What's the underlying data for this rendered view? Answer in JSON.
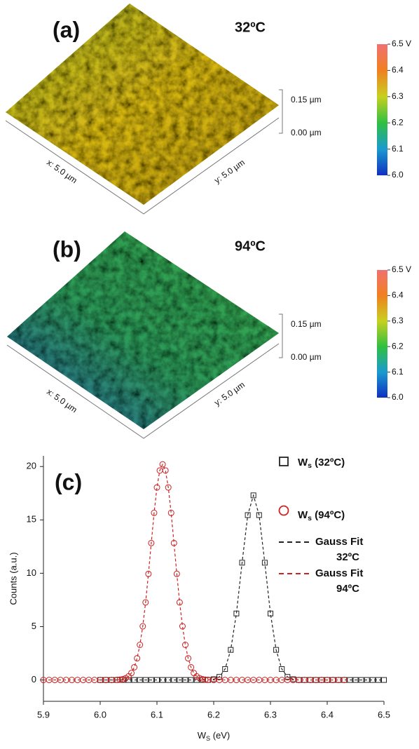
{
  "panels": [
    {
      "label": "(a)",
      "temperature": "32ºC",
      "z_ticks": [
        "0.15 µm",
        "0.00 µm"
      ],
      "x_axis": "x: 5.0 µm",
      "y_axis": "y: 5.0 µm",
      "colorbar": {
        "lim": [
          6.0,
          6.5
        ],
        "ticks": [
          {
            "value": 6.5,
            "label": "6.5 V"
          },
          6.4,
          6.3,
          6.2,
          6.1,
          {
            "value": 6.0,
            "label": "6.0"
          }
        ]
      }
    },
    {
      "label": "(b)",
      "temperature": "94ºC",
      "z_ticks": [
        "0.15 µm",
        "0.00 µm"
      ],
      "x_axis": "x: 5.0 µm",
      "y_axis": "y: 5.0 µm",
      "colorbar": {
        "lim": [
          6.0,
          6.5
        ],
        "ticks": [
          {
            "value": 6.5,
            "label": "6.5 V"
          },
          6.4,
          6.3,
          6.2,
          6.1,
          {
            "value": 6.0,
            "label": "6.0"
          }
        ]
      }
    }
  ],
  "chart_data": {
    "type": "scatter",
    "title": "(c)",
    "x_label": {
      "base": "W",
      "sub": "S",
      "rest": " (eV)"
    },
    "y_label": "Counts (a.u.)",
    "xlim": [
      5.9,
      6.5
    ],
    "ylim": [
      -2,
      21
    ],
    "xticks": [
      5.9,
      {
        "value": 6.0,
        "label": "6.0"
      },
      6.1,
      6.2,
      6.3,
      6.4,
      6.5
    ],
    "yticks": [
      0,
      5,
      10,
      15,
      20
    ],
    "legend": "upper right",
    "series": [
      {
        "name": {
          "base": "W",
          "sub": "s",
          "rest": " (32ºC)"
        },
        "color": "#222222",
        "marker": "square",
        "fit_name": [
          "Gauss Fit",
          "32ºC"
        ],
        "x": [
          6.0,
          6.01,
          6.02,
          6.03,
          6.04,
          6.05,
          6.06,
          6.07,
          6.08,
          6.09,
          6.1,
          6.11,
          6.12,
          6.13,
          6.14,
          6.15,
          6.16,
          6.17,
          6.18,
          6.19,
          6.2,
          6.21,
          6.22,
          6.23,
          6.24,
          6.25,
          6.26,
          6.27,
          6.28,
          6.29,
          6.3,
          6.31,
          6.32,
          6.33,
          6.34,
          6.35,
          6.36,
          6.37,
          6.38,
          6.39,
          6.4,
          6.41,
          6.42,
          6.43,
          6.44,
          6.45,
          6.46,
          6.47,
          6.48,
          6.49,
          6.5
        ],
        "values": [
          0,
          0,
          0,
          0,
          0,
          0,
          0,
          0,
          0,
          0,
          0,
          0,
          0,
          0,
          0,
          0,
          0,
          0,
          0,
          0,
          0.07,
          0.29,
          1.02,
          2.82,
          6.23,
          10.99,
          15.45,
          17.3,
          15.45,
          10.99,
          6.23,
          2.82,
          1.02,
          0.29,
          0.07,
          0,
          0,
          0,
          0,
          0,
          0,
          0,
          0,
          0,
          0,
          0,
          0,
          0,
          0,
          0,
          0
        ]
      },
      {
        "name": {
          "base": "W",
          "sub": "s",
          "rest": " (94ºC)"
        },
        "color": "#cc2222",
        "marker": "circle",
        "fit_name": [
          "Gauss Fit",
          "94ºC"
        ],
        "x": [
          5.9,
          5.91,
          5.92,
          5.93,
          5.94,
          5.95,
          5.96,
          5.97,
          5.98,
          5.99,
          6.0,
          6.01,
          6.02,
          6.03,
          6.035,
          6.04,
          6.045,
          6.05,
          6.055,
          6.06,
          6.065,
          6.07,
          6.075,
          6.08,
          6.085,
          6.09,
          6.095,
          6.1,
          6.105,
          6.11,
          6.115,
          6.12,
          6.125,
          6.13,
          6.135,
          6.14,
          6.145,
          6.15,
          6.155,
          6.16,
          6.165,
          6.17,
          6.175,
          6.18,
          6.185,
          6.19,
          6.2,
          6.21,
          6.22,
          6.23,
          6.24,
          6.25,
          6.26,
          6.27,
          6.28,
          6.29,
          6.3,
          6.31,
          6.32,
          6.33,
          6.34,
          6.35,
          6.36,
          6.37,
          6.38,
          6.39,
          6.4,
          6.41,
          6.42,
          6.43
        ],
        "values": [
          0,
          0,
          0,
          0,
          0,
          0,
          0,
          0,
          0,
          0,
          0,
          0,
          0,
          0.01,
          0.03,
          0.08,
          0.17,
          0.34,
          0.65,
          1.19,
          2.03,
          3.29,
          5.03,
          7.27,
          9.94,
          12.83,
          15.66,
          18.04,
          19.63,
          20.2,
          19.63,
          18.04,
          15.66,
          12.83,
          9.94,
          7.27,
          5.03,
          3.29,
          2.03,
          1.19,
          0.65,
          0.34,
          0.17,
          0.08,
          0.03,
          0.01,
          0,
          0,
          0,
          0,
          0,
          0,
          0,
          0,
          0,
          0,
          0,
          0,
          0,
          0,
          0,
          0,
          0,
          0,
          0,
          0,
          0,
          0,
          0,
          0
        ]
      }
    ]
  }
}
